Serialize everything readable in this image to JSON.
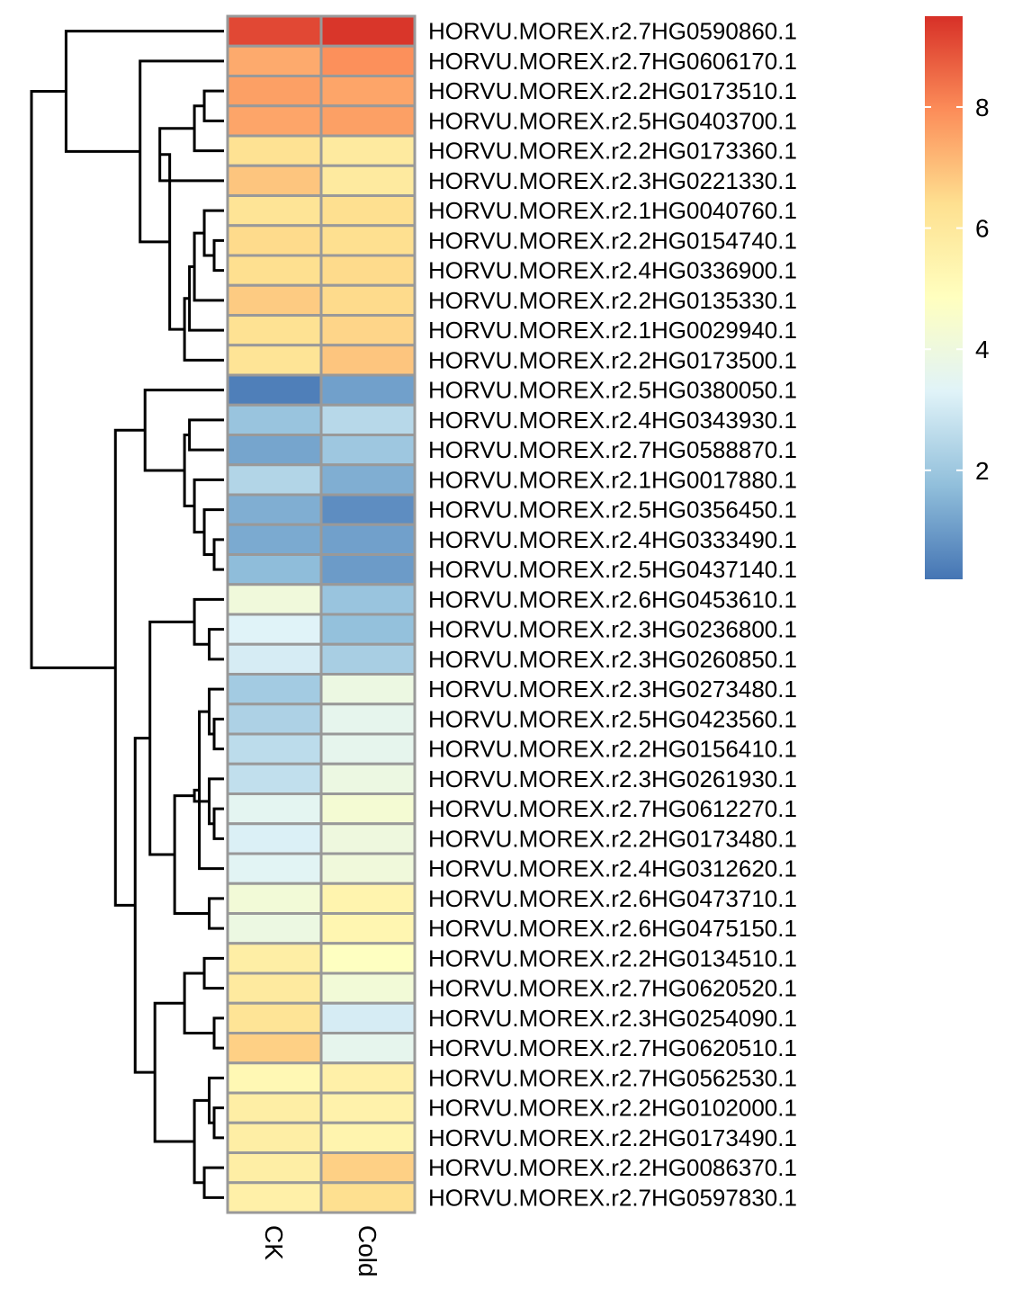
{
  "chart_data": {
    "type": "heatmap",
    "title": "",
    "columns": [
      "CK",
      "Cold"
    ],
    "rows": [
      "HORVU.MOREX.r2.7HG0590860.1",
      "HORVU.MOREX.r2.7HG0606170.1",
      "HORVU.MOREX.r2.2HG0173510.1",
      "HORVU.MOREX.r2.5HG0403700.1",
      "HORVU.MOREX.r2.2HG0173360.1",
      "HORVU.MOREX.r2.3HG0221330.1",
      "HORVU.MOREX.r2.1HG0040760.1",
      "HORVU.MOREX.r2.2HG0154740.1",
      "HORVU.MOREX.r2.4HG0336900.1",
      "HORVU.MOREX.r2.2HG0135330.1",
      "HORVU.MOREX.r2.1HG0029940.1",
      "HORVU.MOREX.r2.2HG0173500.1",
      "HORVU.MOREX.r2.5HG0380050.1",
      "HORVU.MOREX.r2.4HG0343930.1",
      "HORVU.MOREX.r2.7HG0588870.1",
      "HORVU.MOREX.r2.1HG0017880.1",
      "HORVU.MOREX.r2.5HG0356450.1",
      "HORVU.MOREX.r2.4HG0333490.1",
      "HORVU.MOREX.r2.5HG0437140.1",
      "HORVU.MOREX.r2.6HG0453610.1",
      "HORVU.MOREX.r2.3HG0236800.1",
      "HORVU.MOREX.r2.3HG0260850.1",
      "HORVU.MOREX.r2.3HG0273480.1",
      "HORVU.MOREX.r2.5HG0423560.1",
      "HORVU.MOREX.r2.2HG0156410.1",
      "HORVU.MOREX.r2.3HG0261930.1",
      "HORVU.MOREX.r2.7HG0612270.1",
      "HORVU.MOREX.r2.2HG0173480.1",
      "HORVU.MOREX.r2.4HG0312620.1",
      "HORVU.MOREX.r2.6HG0473710.1",
      "HORVU.MOREX.r2.6HG0475150.1",
      "HORVU.MOREX.r2.2HG0134510.1",
      "HORVU.MOREX.r2.7HG0620520.1",
      "HORVU.MOREX.r2.3HG0254090.1",
      "HORVU.MOREX.r2.7HG0620510.1",
      "HORVU.MOREX.r2.7HG0562530.1",
      "HORVU.MOREX.r2.2HG0102000.1",
      "HORVU.MOREX.r2.2HG0173490.1",
      "HORVU.MOREX.r2.2HG0086370.1",
      "HORVU.MOREX.r2.7HG0597830.1"
    ],
    "values": [
      [
        9.1,
        9.4
      ],
      [
        7.4,
        7.9
      ],
      [
        7.6,
        7.5
      ],
      [
        7.5,
        7.6
      ],
      [
        6.3,
        5.9
      ],
      [
        6.9,
        5.9
      ],
      [
        6.2,
        6.4
      ],
      [
        6.5,
        6.4
      ],
      [
        6.4,
        6.5
      ],
      [
        6.8,
        6.5
      ],
      [
        6.3,
        6.6
      ],
      [
        6.2,
        6.9
      ],
      [
        0.4,
        1.1
      ],
      [
        1.9,
        2.5
      ],
      [
        1.2,
        2.0
      ],
      [
        2.4,
        1.4
      ],
      [
        1.4,
        0.7
      ],
      [
        1.3,
        1.1
      ],
      [
        1.7,
        1.0
      ],
      [
        4.1,
        1.9
      ],
      [
        3.3,
        1.8
      ],
      [
        3.1,
        2.2
      ],
      [
        2.1,
        3.9
      ],
      [
        2.3,
        3.6
      ],
      [
        2.6,
        3.6
      ],
      [
        2.7,
        3.9
      ],
      [
        3.5,
        4.3
      ],
      [
        3.2,
        4.0
      ],
      [
        3.4,
        4.1
      ],
      [
        4.2,
        5.4
      ],
      [
        3.9,
        5.3
      ],
      [
        5.7,
        4.8
      ],
      [
        5.9,
        4.2
      ],
      [
        6.2,
        3.1
      ],
      [
        6.7,
        3.6
      ],
      [
        5.2,
        5.6
      ],
      [
        5.7,
        5.5
      ],
      [
        5.7,
        5.4
      ],
      [
        5.7,
        6.7
      ],
      [
        5.6,
        6.4
      ]
    ],
    "colorbar": {
      "min": 0.2,
      "max": 9.5,
      "ticks": [
        2,
        4,
        6,
        8
      ]
    },
    "colors": [
      "#4575b4",
      "#91bfdb",
      "#e0f3f8",
      "#ffffbf",
      "#fee090",
      "#fc8d59",
      "#d73027"
    ],
    "cell_border_color": "#999999",
    "dendrogram": {
      "leaf_order": [
        0,
        1,
        2,
        3,
        4,
        5,
        6,
        7,
        8,
        9,
        10,
        11,
        12,
        13,
        14,
        15,
        16,
        17,
        18,
        19,
        20,
        21,
        22,
        23,
        24,
        25,
        26,
        27,
        28,
        29,
        30,
        31,
        32,
        33,
        34,
        35,
        36,
        37,
        38,
        39
      ],
      "merges": [
        [
          3,
          2,
          0.4
        ],
        [
          -1,
          4,
          0.6
        ],
        [
          -2,
          5,
          1.3
        ],
        [
          7,
          8,
          0.2
        ],
        [
          6,
          -4,
          0.4
        ],
        [
          -5,
          9,
          0.6
        ],
        [
          -6,
          10,
          0.7
        ],
        [
          -7,
          11,
          0.8
        ],
        [
          -3,
          -8,
          1.1
        ],
        [
          1,
          -9,
          1.7
        ],
        [
          0,
          -10,
          3.2
        ],
        [
          17,
          18,
          0.2
        ],
        [
          16,
          -12,
          0.4
        ],
        [
          15,
          -13,
          0.6
        ],
        [
          13,
          14,
          0.7
        ],
        [
          -15,
          -14,
          0.8
        ],
        [
          12,
          -16,
          1.6
        ],
        [
          20,
          21,
          0.3
        ],
        [
          19,
          -18,
          0.6
        ],
        [
          23,
          24,
          0.2
        ],
        [
          22,
          -20,
          0.3
        ],
        [
          26,
          27,
          0.2
        ],
        [
          -22,
          25,
          0.3
        ],
        [
          -21,
          28,
          0.5
        ],
        [
          -23,
          -24,
          0.6
        ],
        [
          29,
          30,
          0.3
        ],
        [
          -25,
          -26,
          1.0
        ],
        [
          -19,
          -27,
          1.5
        ],
        [
          33,
          34,
          0.2
        ],
        [
          31,
          32,
          0.4
        ],
        [
          -30,
          -29,
          0.8
        ],
        [
          36,
          37,
          0.2
        ],
        [
          35,
          -32,
          0.3
        ],
        [
          38,
          39,
          0.4
        ],
        [
          -33,
          -34,
          0.6
        ],
        [
          -31,
          -35,
          1.4
        ],
        [
          -28,
          -36,
          1.8
        ],
        [
          -17,
          -37,
          2.2
        ],
        [
          -11,
          -38,
          3.9
        ]
      ]
    }
  }
}
